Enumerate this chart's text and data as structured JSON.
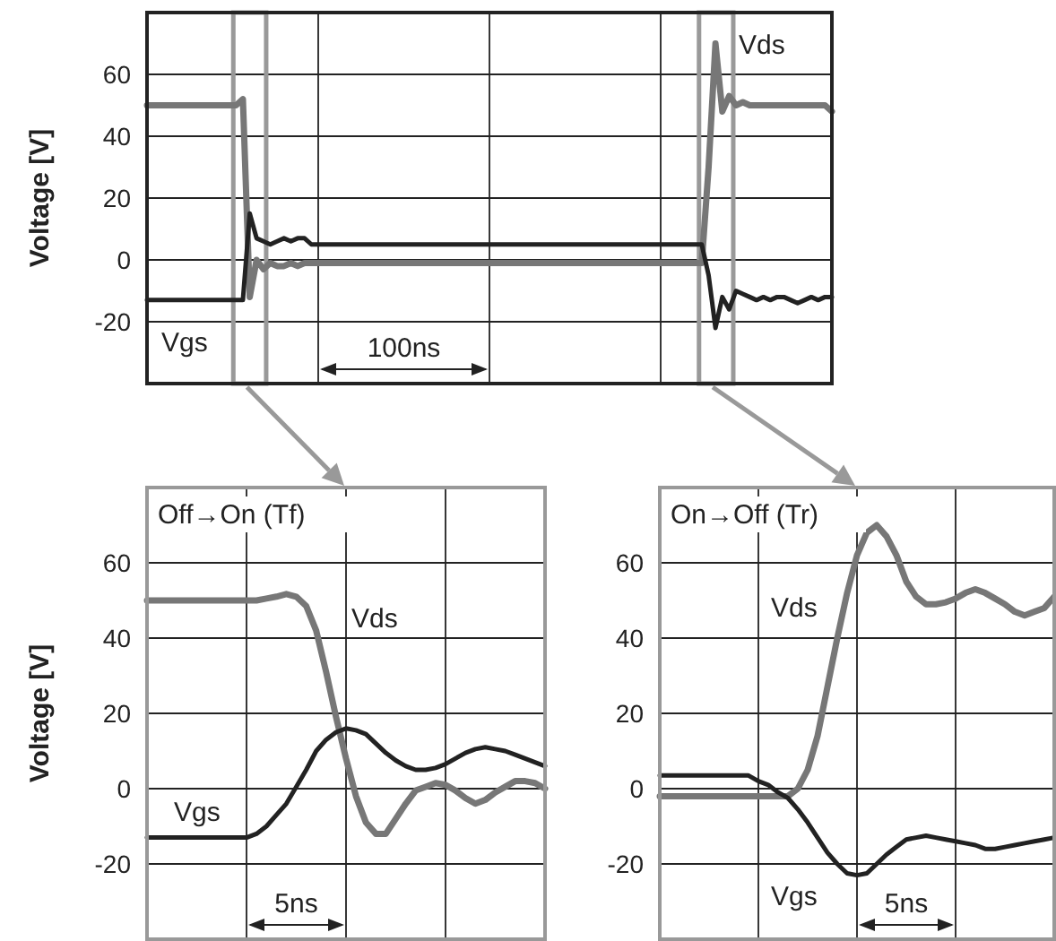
{
  "chart_data": [
    {
      "type": "line",
      "ylabel": "Voltage [V]",
      "categories": [
        null,
        null,
        null,
        null,
        null,
        null,
        null,
        null,
        null,
        null,
        null,
        null,
        null,
        null,
        null,
        null,
        null,
        null,
        null,
        null,
        null,
        null,
        null,
        null,
        null,
        null,
        null,
        null,
        null,
        null,
        null,
        null,
        null,
        null,
        null,
        null,
        null,
        null,
        null,
        null,
        null,
        null,
        null,
        null,
        null,
        null,
        null,
        null,
        null,
        null,
        null,
        null,
        null,
        null,
        null,
        null,
        null,
        null,
        null,
        null,
        null,
        null,
        null,
        null,
        null,
        null,
        null,
        null,
        null,
        null,
        null,
        null,
        null,
        null,
        null,
        null,
        null,
        null,
        null,
        null,
        null,
        null,
        null,
        null,
        null,
        null,
        null,
        null,
        null,
        null,
        null,
        null,
        null,
        null,
        null,
        null,
        null,
        null,
        null,
        null,
        null
      ],
      "ylim": [
        -40,
        80
      ],
      "yticks": [
        -20,
        0,
        20,
        40,
        60
      ],
      "grid": true,
      "tick_labels": "y",
      "series": [
        {
          "name": "Vds",
          "color": "#777777",
          "values": [
            50,
            50,
            50,
            50,
            50,
            50,
            50,
            50,
            50,
            50,
            50,
            50,
            50,
            50,
            52,
            -12,
            0,
            -3,
            -1,
            -2,
            -2,
            -1,
            -2,
            -1,
            -1,
            -1,
            -1,
            -1,
            -1,
            -1,
            -1,
            -1,
            -1,
            -1,
            -1,
            -1,
            -1,
            -1,
            -1,
            -1,
            -1,
            -1,
            -1,
            -1,
            -1,
            -1,
            -1,
            -1,
            -1,
            -1,
            -1,
            -1,
            -1,
            -1,
            -1,
            -1,
            -1,
            -1,
            -1,
            -1,
            -1,
            -1,
            -1,
            -1,
            -1,
            -1,
            -1,
            -1,
            -1,
            -1,
            -1,
            -1,
            -1,
            -1,
            -1,
            -1,
            -1,
            -1,
            -1,
            -1,
            -1,
            -1,
            30,
            70,
            48,
            53,
            50,
            51,
            50,
            50,
            50,
            50,
            50,
            50,
            50,
            50,
            50,
            50,
            50,
            50,
            48
          ]
        },
        {
          "name": "Vgs",
          "color": "#222222",
          "values": [
            -13,
            -13,
            -13,
            -13,
            -13,
            -13,
            -13,
            -13,
            -13,
            -13,
            -13,
            -13,
            -13,
            -13,
            -13,
            15,
            7,
            6,
            5,
            6,
            7,
            6,
            7,
            7,
            5,
            5,
            5,
            5,
            5,
            5,
            5,
            5,
            5,
            5,
            5,
            5,
            5,
            5,
            5,
            5,
            5,
            5,
            5,
            5,
            5,
            5,
            5,
            5,
            5,
            5,
            5,
            5,
            5,
            5,
            5,
            5,
            5,
            5,
            5,
            5,
            5,
            5,
            5,
            5,
            5,
            5,
            5,
            5,
            5,
            5,
            5,
            5,
            5,
            5,
            5,
            5,
            5,
            5,
            5,
            5,
            5,
            5,
            -5,
            -22,
            -12,
            -16,
            -10,
            -11,
            -12,
            -13,
            -12,
            -13,
            -12,
            -12,
            -13,
            -14,
            -13,
            -12,
            -13,
            -12,
            -12
          ]
        }
      ],
      "annotations": [
        "100ns"
      ]
    },
    {
      "type": "line",
      "title": "Off→On (Tf)",
      "ylabel": "Voltage [V]",
      "categories": [
        null,
        null,
        null,
        null,
        null,
        null,
        null,
        null,
        null,
        null,
        null,
        null,
        null,
        null,
        null,
        null,
        null,
        null,
        null,
        null,
        null,
        null,
        null,
        null,
        null,
        null,
        null,
        null,
        null,
        null,
        null,
        null,
        null,
        null,
        null,
        null,
        null,
        null,
        null,
        null,
        null
      ],
      "ylim": [
        -40,
        80
      ],
      "yticks": [
        -20,
        0,
        20,
        40,
        60
      ],
      "grid": true,
      "tick_labels": "y",
      "series": [
        {
          "name": "Vds",
          "color": "#777777",
          "values": [
            50,
            50,
            50,
            50,
            50,
            50,
            50,
            50,
            50,
            50,
            50,
            50,
            50.5,
            51,
            51.7,
            51,
            48.5,
            42,
            31,
            19,
            8,
            -2,
            -9,
            -12,
            -12,
            -8,
            -4,
            -0.5,
            0.5,
            1.5,
            1,
            -0.5,
            -2.5,
            -4,
            -3,
            -1,
            0.5,
            2,
            2,
            1.5,
            0
          ]
        },
        {
          "name": "Vgs",
          "color": "#222222",
          "values": [
            -13,
            -13,
            -13,
            -13,
            -13,
            -13,
            -13,
            -13,
            -13,
            -13,
            -13,
            -12,
            -10,
            -7,
            -4,
            0.5,
            5,
            10,
            13,
            15,
            16,
            15.5,
            14.5,
            12,
            9.5,
            7.5,
            6,
            5,
            5,
            5.5,
            6.5,
            8,
            9.5,
            10.5,
            11,
            10.5,
            10,
            9,
            8,
            7,
            6
          ]
        }
      ],
      "annotations": [
        "5ns"
      ]
    },
    {
      "type": "line",
      "title": "On→Off (Tr)",
      "categories": [
        null,
        null,
        null,
        null,
        null,
        null,
        null,
        null,
        null,
        null,
        null,
        null,
        null,
        null,
        null,
        null,
        null,
        null,
        null,
        null,
        null,
        null,
        null,
        null,
        null,
        null,
        null,
        null,
        null,
        null,
        null,
        null,
        null,
        null,
        null,
        null,
        null,
        null,
        null,
        null,
        null
      ],
      "ylim": [
        -40,
        80
      ],
      "yticks": [
        -20,
        0,
        20,
        40,
        60
      ],
      "grid": true,
      "tick_labels": "y",
      "series": [
        {
          "name": "Vds",
          "color": "#777777",
          "values": [
            -2,
            -2,
            -2,
            -2,
            -2,
            -2,
            -2,
            -2,
            -2,
            -2,
            -2,
            -2,
            -2,
            -2,
            0,
            5,
            14,
            27,
            40,
            52,
            62,
            68,
            70,
            67,
            62,
            55,
            51,
            49,
            49,
            49.5,
            50.5,
            52,
            53,
            52,
            50.5,
            49,
            47,
            46,
            47,
            48,
            51
          ]
        },
        {
          "name": "Vgs",
          "color": "#222222",
          "values": [
            3.5,
            3.5,
            3.5,
            3.5,
            3.5,
            3.5,
            3.5,
            3.5,
            3.5,
            3.5,
            2,
            1,
            -1,
            -2.5,
            -5.5,
            -9,
            -13,
            -17,
            -20,
            -22.5,
            -23,
            -22.5,
            -20,
            -17.5,
            -15.5,
            -13.5,
            -13,
            -12.5,
            -13,
            -13.5,
            -14,
            -14.5,
            -15,
            -16,
            -16,
            -15.5,
            -15,
            -14.5,
            -14,
            -13.5,
            -13
          ]
        }
      ],
      "annotations": [
        "5ns"
      ]
    }
  ]
}
